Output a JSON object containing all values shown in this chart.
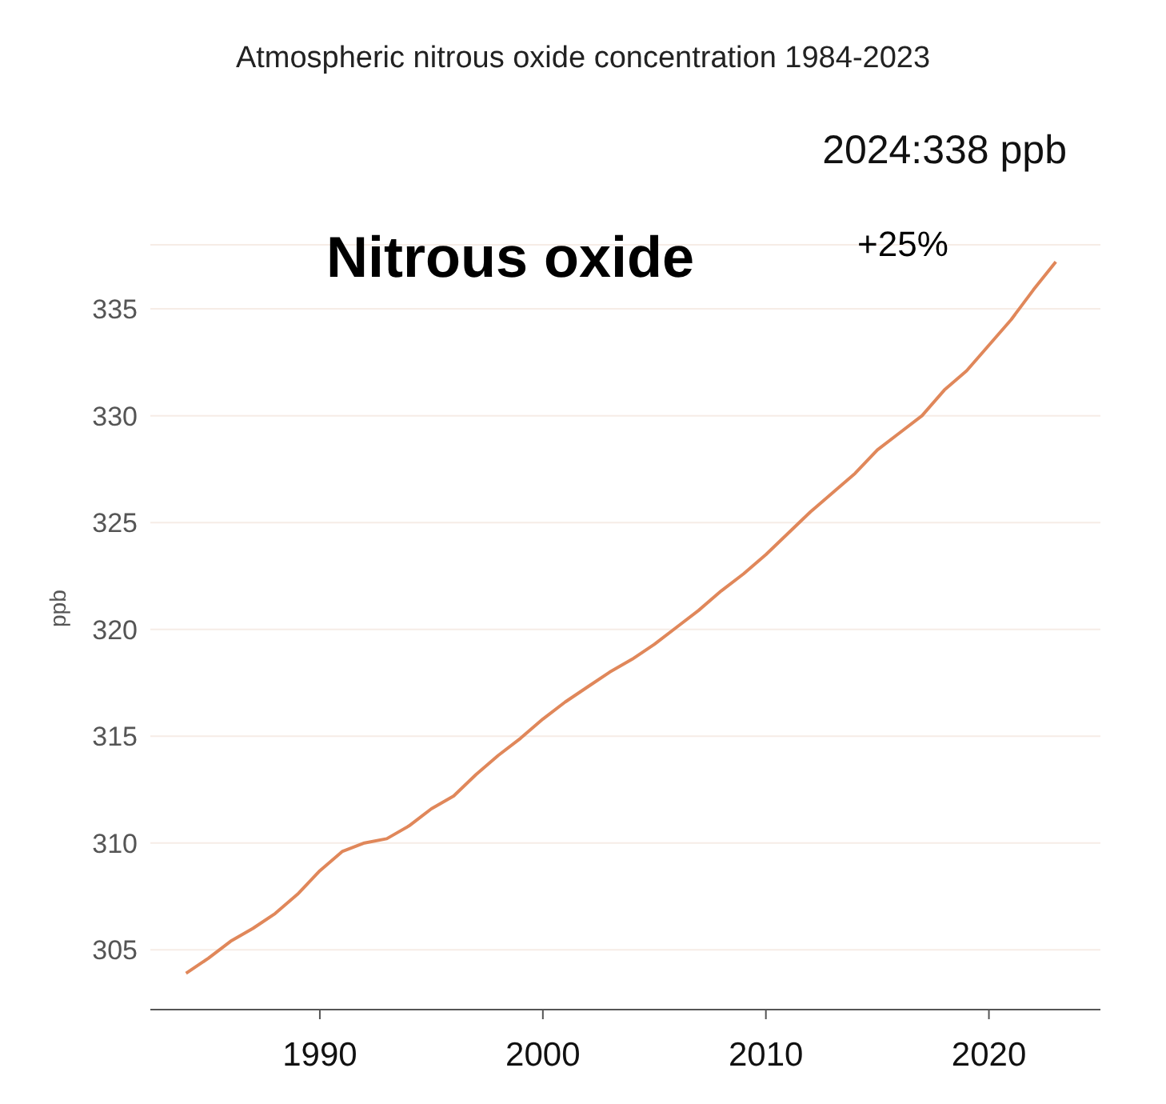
{
  "chart_data": {
    "type": "line",
    "title": "Atmospheric nitrous oxide concentration 1984-2023",
    "ylabel": "ppb",
    "annotations": [
      "2024:338 ppb",
      "Nitrous oxide",
      "+25%"
    ],
    "x": [
      1984,
      1985,
      1986,
      1987,
      1988,
      1989,
      1990,
      1991,
      1992,
      1993,
      1994,
      1995,
      1996,
      1997,
      1998,
      1999,
      2000,
      2001,
      2002,
      2003,
      2004,
      2005,
      2006,
      2007,
      2008,
      2009,
      2010,
      2011,
      2012,
      2013,
      2014,
      2015,
      2016,
      2017,
      2018,
      2019,
      2020,
      2021,
      2022,
      2023
    ],
    "series": [
      {
        "color": "#e0875a",
        "values": [
          303.9,
          304.6,
          305.4,
          306.0,
          306.7,
          307.6,
          308.7,
          309.6,
          310.0,
          310.2,
          310.8,
          311.6,
          312.2,
          313.2,
          314.1,
          314.9,
          315.8,
          316.6,
          317.3,
          318.0,
          318.6,
          319.3,
          320.1,
          320.9,
          321.8,
          322.6,
          323.5,
          324.5,
          325.5,
          326.4,
          327.3,
          328.4,
          329.2,
          330.0,
          331.2,
          332.1,
          333.3,
          334.5,
          335.9,
          337.2
        ]
      }
    ],
    "xlim": [
      1982.4,
      2025
    ],
    "xticks": [
      1990,
      2000,
      2010,
      2020
    ],
    "ylim": [
      302.2,
      338
    ],
    "yticks": [
      305,
      310,
      315,
      320,
      325,
      330,
      335
    ],
    "grid": "y",
    "marker": "none",
    "line_style": "solid"
  }
}
